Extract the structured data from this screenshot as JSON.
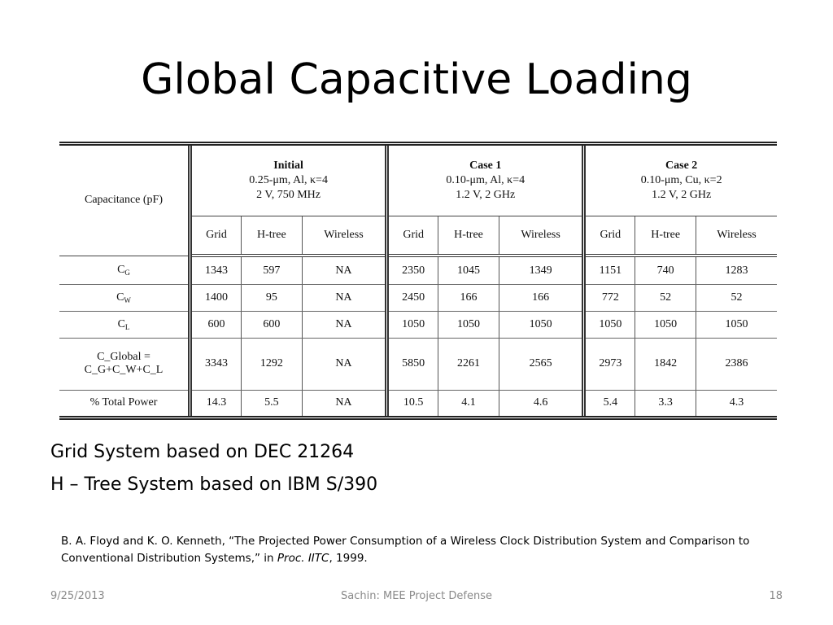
{
  "slide": {
    "title": "Global Capacitive Loading",
    "notes": [
      "Grid System based on DEC 21264",
      "H – Tree System based on IBM S/390"
    ],
    "reference": {
      "main": "B. A. Floyd and K. O. Kenneth, “The Projected Power Consumption of a Wireless Clock Distribution System and Comparison to Conventional Distribution Systems,” in ",
      "venue": "Proc. IITC",
      "year": ", 1999."
    }
  },
  "table": {
    "corner_label": "Capacitance (pF)",
    "cases": [
      {
        "name": "Initial",
        "lines": [
          "0.25-μm, Al, κ=4",
          "2 V, 750 MHz"
        ]
      },
      {
        "name": "Case 1",
        "lines": [
          "0.10-μm, Al, κ=4",
          "1.2 V, 2 GHz"
        ]
      },
      {
        "name": "Case 2",
        "lines": [
          "0.10-μm, Cu, κ=2",
          "1.2 V, 2 GHz"
        ]
      }
    ],
    "subheaders": [
      "Grid",
      "H-tree",
      "Wireless",
      "Grid",
      "H-tree",
      "Wireless",
      "Grid",
      "H-tree",
      "Wireless"
    ],
    "rows": [
      {
        "label": {
          "base": "C",
          "sub": "G"
        },
        "values": [
          "1343",
          "597",
          "NA",
          "2350",
          "1045",
          "1349",
          "1151",
          "740",
          "1283"
        ]
      },
      {
        "label": {
          "base": "C",
          "sub": "W"
        },
        "values": [
          "1400",
          "95",
          "NA",
          "2450",
          "166",
          "166",
          "772",
          "52",
          "52"
        ]
      },
      {
        "label": {
          "base": "C",
          "sub": "L"
        },
        "values": [
          "600",
          "600",
          "NA",
          "1050",
          "1050",
          "1050",
          "1050",
          "1050",
          "1050"
        ]
      },
      {
        "label": {
          "text": "C_Global = C_G+C_W+C_L"
        },
        "values": [
          "3343",
          "1292",
          "NA",
          "5850",
          "2261",
          "2565",
          "2973",
          "1842",
          "2386"
        ]
      },
      {
        "label": {
          "text": "% Total Power"
        },
        "values": [
          "14.3",
          "5.5",
          "NA",
          "10.5",
          "4.1",
          "4.6",
          "5.4",
          "3.3",
          "4.3"
        ]
      }
    ]
  },
  "footer": {
    "date": "9/25/2013",
    "center": "Sachin: MEE Project Defense",
    "page": "18"
  }
}
